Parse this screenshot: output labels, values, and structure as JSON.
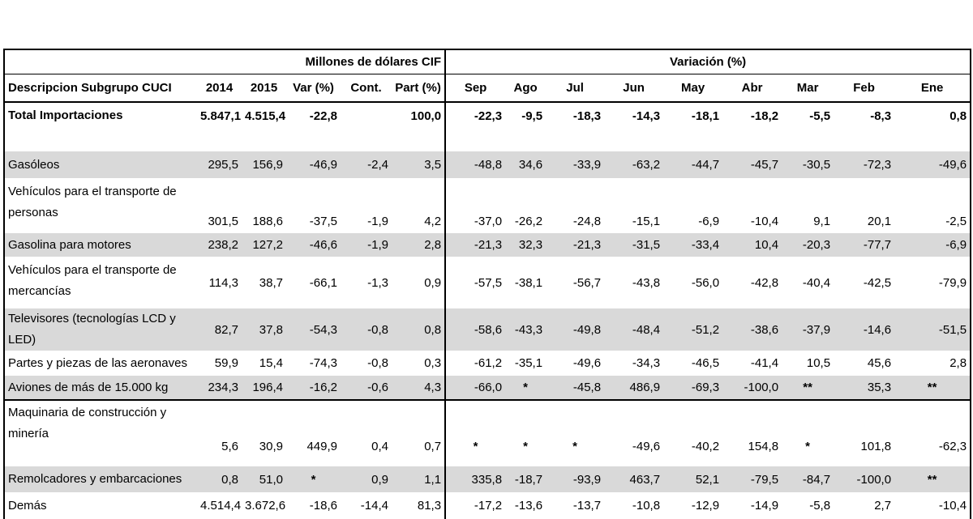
{
  "header_band": {
    "left": "Millones de dólares CIF",
    "right": "Variación (%)"
  },
  "columns": [
    "Descripcion Subgrupo CUCI",
    "2014",
    "2015",
    "Var (%)",
    "Cont.",
    "Part (%)",
    "Sep",
    "Ago",
    "Jul",
    "Jun",
    "May",
    "Abr",
    "Mar",
    "Feb",
    "Ene"
  ],
  "rows": [
    [
      "Total Importaciones",
      "5.847,1",
      "4.515,4",
      "-22,8",
      "",
      "100,0",
      "-22,3",
      "-9,5",
      "-18,3",
      "-14,3",
      "-18,1",
      "-18,2",
      "-5,5",
      "-8,3",
      "0,8"
    ],
    [
      "Gasóleos",
      "295,5",
      "156,9",
      "-46,9",
      "-2,4",
      "3,5",
      "-48,8",
      "34,6",
      "-33,9",
      "-63,2",
      "-44,7",
      "-45,7",
      "-30,5",
      "-72,3",
      "-49,6"
    ],
    [
      "Vehículos para el transporte de personas",
      "301,5",
      "188,6",
      "-37,5",
      "-1,9",
      "4,2",
      "-37,0",
      "-26,2",
      "-24,8",
      "-15,1",
      "-6,9",
      "-10,4",
      "9,1",
      "20,1",
      "-2,5"
    ],
    [
      "Gasolina para motores",
      "238,2",
      "127,2",
      "-46,6",
      "-1,9",
      "2,8",
      "-21,3",
      "32,3",
      "-21,3",
      "-31,5",
      "-33,4",
      "10,4",
      "-20,3",
      "-77,7",
      "-6,9"
    ],
    [
      "Vehículos para el transporte de mercancías",
      "114,3",
      "38,7",
      "-66,1",
      "-1,3",
      "0,9",
      "-57,5",
      "-38,1",
      "-56,7",
      "-43,8",
      "-56,0",
      "-42,8",
      "-40,4",
      "-42,5",
      "-79,9"
    ],
    [
      "Televisores (tecnologías LCD y LED)",
      "82,7",
      "37,8",
      "-54,3",
      "-0,8",
      "0,8",
      "-58,6",
      "-43,3",
      "-49,8",
      "-48,4",
      "-51,2",
      "-38,6",
      "-37,9",
      "-14,6",
      "-51,5"
    ],
    [
      "Partes y piezas de las aeronaves",
      "59,9",
      "15,4",
      "-74,3",
      "-0,8",
      "0,3",
      "-61,2",
      "-35,1",
      "-49,6",
      "-34,3",
      "-46,5",
      "-41,4",
      "10,5",
      "45,6",
      "2,8"
    ],
    [
      "Aviones de más de 15.000 kg",
      "234,3",
      "196,4",
      "-16,2",
      "-0,6",
      "4,3",
      "-66,0",
      "*",
      "-45,8",
      "486,9",
      "-69,3",
      "-100,0",
      "**",
      "35,3",
      "**"
    ],
    [
      "Maquinaria de construcción y minería",
      "5,6",
      "30,9",
      "449,9",
      "0,4",
      "0,7",
      "*",
      "*",
      "*",
      "-49,6",
      "-40,2",
      "154,8",
      "*",
      "101,8",
      "-62,3"
    ],
    [
      "Remolcadores y embarcaciones",
      "0,8",
      "51,0",
      "*",
      "0,9",
      "1,1",
      "335,8",
      "-18,7",
      "-93,9",
      "463,7",
      "52,1",
      "-79,5",
      "-84,7",
      "-100,0",
      "**"
    ],
    [
      "Demás",
      "4.514,4",
      "3.672,6",
      "-18,6",
      "-14,4",
      "81,3",
      "-17,2",
      "-13,6",
      "-13,7",
      "-10,8",
      "-12,9",
      "-14,9",
      "-5,8",
      "2,7",
      "-10,4"
    ]
  ]
}
